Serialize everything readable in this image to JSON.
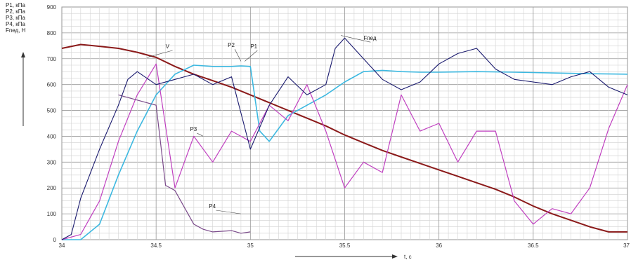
{
  "chart_data": {
    "type": "line",
    "ylabels_stack": [
      "P1, кПа",
      "P2, кПа",
      "P3, кПа",
      "P4, кПа",
      "Fпед, Н"
    ],
    "xlabel": "t, c",
    "xlim": [
      34,
      37
    ],
    "ylim": [
      0,
      900
    ],
    "x_ticks": [
      "34",
      "34.5",
      "35",
      "35.5",
      "36",
      "36.5",
      "37"
    ],
    "y_ticks": [
      "0",
      "100",
      "200",
      "300",
      "400",
      "500",
      "600",
      "700",
      "800",
      "900"
    ],
    "grid": true,
    "colors": {
      "V": "#8b1a1a",
      "P1": "#c040c0",
      "P2": "#3cb8e0",
      "P3": "#c040c0",
      "P4": "#7a4a8a",
      "Fped": "#1a1a6e"
    },
    "series": [
      {
        "name": "V",
        "x": [
          34.0,
          34.1,
          34.2,
          34.3,
          34.4,
          34.5,
          34.6,
          34.7,
          34.8,
          34.9,
          35.0,
          35.1,
          35.2,
          35.3,
          35.4,
          35.5,
          35.6,
          35.7,
          35.8,
          35.9,
          36.0,
          36.1,
          36.2,
          36.3,
          36.4,
          36.5,
          36.6,
          36.7,
          36.8,
          36.9,
          37.0
        ],
        "y": [
          740,
          755,
          748,
          740,
          725,
          705,
          670,
          640,
          615,
          590,
          560,
          530,
          500,
          470,
          440,
          405,
          375,
          345,
          320,
          295,
          270,
          245,
          220,
          195,
          165,
          130,
          100,
          75,
          50,
          30,
          30
        ]
      },
      {
        "name": "P2",
        "x": [
          34.0,
          34.1,
          34.2,
          34.3,
          34.4,
          34.5,
          34.6,
          34.7,
          34.8,
          34.9,
          34.95,
          35.0,
          35.05,
          35.1,
          35.2,
          35.3,
          35.4,
          35.5,
          35.6,
          35.7,
          35.8,
          35.9,
          36.0,
          36.2,
          36.4,
          36.6,
          36.8,
          37.0
        ],
        "y": [
          0,
          0,
          60,
          250,
          420,
          560,
          640,
          675,
          670,
          670,
          672,
          670,
          420,
          380,
          480,
          520,
          560,
          610,
          650,
          655,
          650,
          648,
          648,
          650,
          648,
          645,
          642,
          640
        ]
      },
      {
        "name": "P1",
        "x": [
          34.0,
          34.1,
          34.2,
          34.3,
          34.4,
          34.5,
          34.6,
          34.7,
          34.8,
          34.9,
          35.0,
          35.1,
          35.2,
          35.3,
          35.4,
          35.5,
          35.6,
          35.7,
          35.8,
          35.9,
          36.0,
          36.1,
          36.2,
          36.3,
          36.4,
          36.5,
          36.6,
          36.7,
          36.8,
          36.9,
          37.0
        ],
        "y": [
          0,
          20,
          150,
          380,
          560,
          680,
          200,
          400,
          300,
          420,
          380,
          520,
          460,
          600,
          420,
          200,
          300,
          260,
          560,
          420,
          450,
          300,
          420,
          420,
          150,
          60,
          120,
          100,
          200,
          430,
          600
        ]
      },
      {
        "name": "P4",
        "x": [
          34.3,
          34.5,
          34.55,
          34.6,
          34.7,
          34.75,
          34.8,
          34.9,
          34.95,
          35.0
        ],
        "y": [
          560,
          520,
          210,
          190,
          60,
          40,
          30,
          35,
          25,
          30
        ]
      },
      {
        "name": "Fped",
        "x": [
          34.0,
          34.05,
          34.1,
          34.2,
          34.3,
          34.35,
          34.4,
          34.5,
          34.6,
          34.7,
          34.8,
          34.9,
          35.0,
          35.1,
          35.2,
          35.3,
          35.4,
          35.45,
          35.5,
          35.6,
          35.7,
          35.8,
          35.9,
          36.0,
          36.1,
          36.2,
          36.3,
          36.4,
          36.5,
          36.6,
          36.7,
          36.8,
          36.9,
          37.0
        ],
        "y": [
          0,
          20,
          160,
          350,
          520,
          620,
          650,
          600,
          620,
          640,
          600,
          630,
          350,
          520,
          630,
          560,
          600,
          740,
          780,
          700,
          620,
          580,
          610,
          680,
          720,
          740,
          660,
          620,
          610,
          600,
          630,
          650,
          590,
          560
        ]
      }
    ],
    "annotations": [
      "V",
      "P2",
      "P1",
      "Fпед",
      "P3",
      "P4"
    ]
  }
}
